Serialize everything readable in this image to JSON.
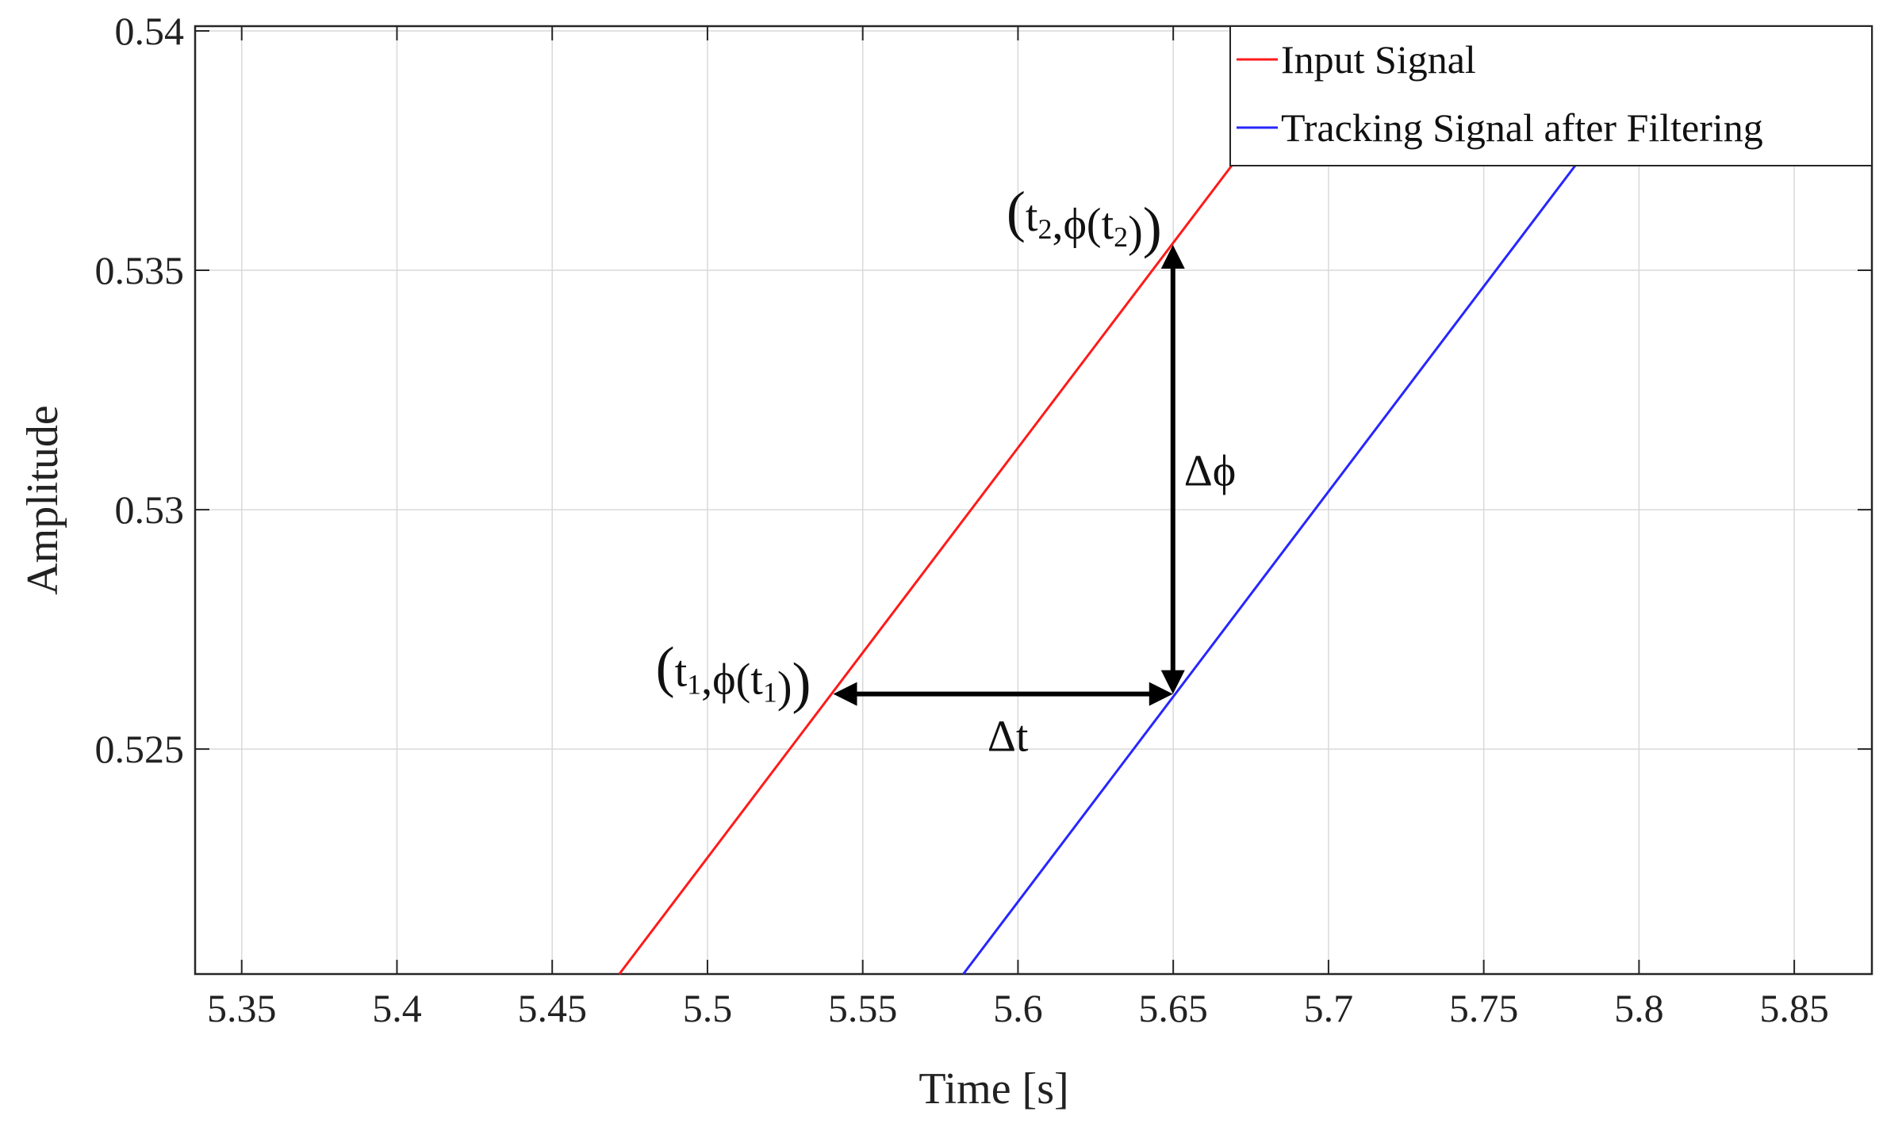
{
  "chart_data": {
    "type": "line",
    "xlabel": "Time [s]",
    "ylabel": "Amplitude",
    "xlim": [
      5.335,
      5.875
    ],
    "ylim": [
      0.5203,
      0.5401
    ],
    "x_ticks": [
      5.35,
      5.4,
      5.45,
      5.5,
      5.55,
      5.6,
      5.65,
      5.7,
      5.75,
      5.8,
      5.85
    ],
    "x_tick_labels": [
      "5.35",
      "5.4",
      "5.45",
      "5.5",
      "5.55",
      "5.6",
      "5.65",
      "5.7",
      "5.75",
      "5.8",
      "5.85"
    ],
    "y_ticks": [
      0.525,
      0.53,
      0.535,
      0.54
    ],
    "y_tick_labels": [
      "0.525",
      "0.53",
      "0.535",
      "0.54"
    ],
    "grid": true,
    "legend_position": "top-right",
    "colors": {
      "input": "#ff1a1a",
      "tracking": "#2626ff",
      "grid": "#d9d9d9",
      "axis": "#262626",
      "arrow": "#000000"
    },
    "series": [
      {
        "name": "Input Signal",
        "color": "#ff1a1a",
        "x": [
          5.4716,
          5.6713
        ],
        "y": [
          0.5203,
          0.5374
        ]
      },
      {
        "name": "Tracking Signal after Filtering",
        "color": "#2626ff",
        "x": [
          5.5824,
          5.7831
        ],
        "y": [
          0.5203,
          0.5375
        ]
      }
    ],
    "annotations": {
      "point1": {
        "label_main": "t",
        "label_sub": "1",
        "phi": "ϕ",
        "x": 5.5405,
        "y": 0.52615
      },
      "point2": {
        "label_main": "t",
        "label_sub": "2",
        "phi": "ϕ",
        "x": 5.6499,
        "y": 0.53553
      },
      "corner": {
        "x": 5.6499,
        "y": 0.52615
      },
      "delta_t": "Δt",
      "delta_phi": "Δϕ"
    }
  }
}
